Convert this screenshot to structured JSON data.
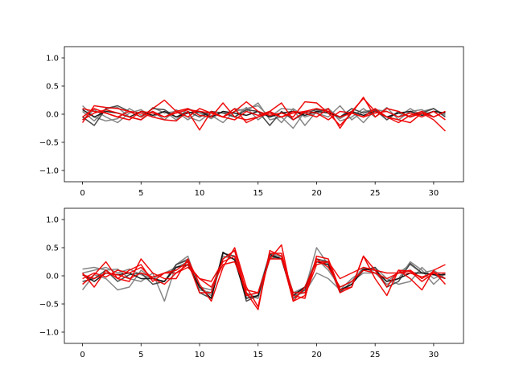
{
  "chart_data": [
    {
      "type": "line",
      "title": "",
      "xlabel": "",
      "ylabel": "",
      "xlim": [
        -1.55,
        32.55
      ],
      "ylim": [
        -1.2,
        1.2
      ],
      "xticks": [
        "0",
        "5",
        "10",
        "15",
        "20",
        "25",
        "30"
      ],
      "yticks": [
        "−1.0",
        "−0.5",
        "0.0",
        "0.5",
        "1.0"
      ],
      "grid": false,
      "legend": "none",
      "x": [
        0,
        1,
        2,
        3,
        4,
        5,
        6,
        7,
        8,
        9,
        10,
        11,
        12,
        13,
        14,
        15,
        16,
        17,
        18,
        19,
        20,
        21,
        22,
        23,
        24,
        25,
        26,
        27,
        28,
        29,
        30,
        31
      ],
      "series": [
        {
          "color": "#808080",
          "values": [
            0.15,
            -0.05,
            -0.12,
            -0.08,
            0.1,
            -0.02,
            0.05,
            -0.1,
            0.08,
            -0.05,
            -0.12,
            0.03,
            -0.05,
            0.1,
            0.05,
            0.2,
            -0.1,
            -0.05,
            -0.25,
            0.05,
            0.02,
            0.1,
            -0.08,
            0.05,
            -0.15,
            0.08,
            0.05,
            -0.05,
            0.1,
            -0.02,
            0.05,
            0.02
          ]
        },
        {
          "color": "#808080",
          "values": [
            0.05,
            -0.12,
            0.1,
            0.12,
            -0.05,
            -0.1,
            0.12,
            0.02,
            0.05,
            -0.1,
            0.05,
            -0.02,
            -0.15,
            0.05,
            0.1,
            0.15,
            -0.05,
            0.1,
            0.08,
            -0.2,
            0.05,
            0.1,
            -0.12,
            -0.05,
            0.1,
            -0.05,
            0.12,
            -0.1,
            0.05,
            0.08,
            -0.05,
            0.05
          ]
        },
        {
          "color": "#808080",
          "values": [
            -0.1,
            0.08,
            -0.05,
            -0.15,
            0.02,
            0.08,
            -0.05,
            0.05,
            -0.1,
            0.1,
            0.02,
            -0.08,
            0.05,
            -0.05,
            0.12,
            -0.1,
            0.05,
            -0.15,
            0.1,
            -0.05,
            0.02,
            -0.05,
            0.15,
            -0.1,
            0.05,
            0.08,
            -0.05,
            0.02,
            -0.05,
            0.05,
            0.1,
            -0.02
          ]
        },
        {
          "color": "#404040",
          "values": [
            -0.05,
            -0.2,
            0.1,
            0.15,
            0.05,
            -0.05,
            0.1,
            0.08,
            -0.05,
            0.05,
            -0.05,
            0.05,
            0.02,
            -0.05,
            0.08,
            0.05,
            -0.2,
            0.05,
            -0.1,
            0.02,
            0.08,
            0.05,
            -0.05,
            0.1,
            0.02,
            0.08,
            -0.1,
            0.05,
            -0.05,
            0.02,
            0.1,
            -0.05
          ]
        },
        {
          "color": "#101010",
          "values": [
            0.08,
            -0.05,
            0.05,
            0.02,
            -0.05,
            0.05,
            -0.02,
            0.05,
            -0.05,
            0.02,
            0.05,
            -0.05,
            0.05,
            0.02,
            -0.02,
            0.05,
            -0.05,
            0.02,
            0.05,
            -0.02,
            0.05,
            0.02,
            -0.05,
            0.05,
            -0.02,
            0.05,
            -0.05,
            0.02,
            0.05,
            -0.02,
            0.05,
            0.02
          ]
        },
        {
          "color": "#ee0000",
          "values": [
            -0.15,
            0.15,
            0.12,
            0.1,
            0.05,
            -0.05,
            0.1,
            0.25,
            0.05,
            0.1,
            -0.02,
            -0.05,
            0.2,
            -0.05,
            -0.1,
            -0.05,
            0.05,
            0.2,
            -0.1,
            0.05,
            0.1,
            0.05,
            -0.05,
            0.02,
            0.3,
            -0.05,
            0.1,
            0.05,
            -0.05,
            0.02,
            -0.05,
            0.05
          ]
        },
        {
          "color": "#ee0000",
          "values": [
            -0.05,
            0.1,
            0.02,
            -0.05,
            -0.1,
            0.05,
            0.02,
            -0.05,
            0.05,
            -0.05,
            0.1,
            0.02,
            -0.05,
            0.05,
            0.22,
            0.05,
            -0.02,
            0.02,
            -0.05,
            0.22,
            0.2,
            0.02,
            -0.2,
            0.02,
            -0.05,
            0.1,
            -0.05,
            -0.15,
            -0.02,
            0.05,
            -0.05,
            0.05
          ]
        },
        {
          "color": "#ee0000",
          "values": [
            0.1,
            0.05,
            0.02,
            -0.05,
            0.05,
            0.02,
            -0.05,
            -0.1,
            -0.12,
            0.05,
            -0.28,
            0.05,
            -0.05,
            0.1,
            -0.15,
            -0.05,
            0.02,
            -0.05,
            0.05,
            0.02,
            -0.05,
            0.1,
            -0.25,
            0.05,
            0.28,
            0.05,
            -0.05,
            -0.1,
            -0.15,
            0.02,
            -0.1,
            -0.3
          ]
        },
        {
          "color": "#ee0000",
          "values": [
            -0.1,
            0.02,
            0.08,
            0.02,
            -0.05,
            -0.1,
            0.05,
            -0.05,
            0.02,
            0.08,
            0.05,
            0.02,
            -0.05,
            -0.1,
            0.05,
            -0.02,
            0.05,
            -0.05,
            0.02,
            0.05,
            0.02,
            -0.1,
            0.05,
            0.02,
            -0.05,
            0.02,
            0.05,
            -0.05,
            0.02,
            -0.05,
            0.05,
            -0.1
          ]
        }
      ]
    },
    {
      "type": "line",
      "title": "",
      "xlabel": "",
      "ylabel": "",
      "xlim": [
        -1.55,
        32.55
      ],
      "ylim": [
        -1.2,
        1.2
      ],
      "xticks": [
        "0",
        "5",
        "10",
        "15",
        "20",
        "25",
        "30"
      ],
      "yticks": [
        "−1.0",
        "−0.5",
        "0.0",
        "0.5",
        "1.0"
      ],
      "grid": false,
      "legend": "none",
      "x": [
        0,
        1,
        2,
        3,
        4,
        5,
        6,
        7,
        8,
        9,
        10,
        11,
        12,
        13,
        14,
        15,
        16,
        17,
        18,
        19,
        20,
        21,
        22,
        23,
        24,
        25,
        26,
        27,
        28,
        29,
        30,
        31
      ],
      "series": [
        {
          "color": "#808080",
          "values": [
            0.12,
            0.15,
            0.1,
            0.12,
            -0.05,
            -0.1,
            0.05,
            -0.45,
            0.2,
            0.3,
            -0.2,
            -0.25,
            0.35,
            0.3,
            -0.3,
            -0.4,
            0.3,
            0.35,
            -0.3,
            -0.25,
            0.5,
            0.2,
            -0.3,
            -0.1,
            0.15,
            0.05,
            -0.15,
            -0.05,
            0.25,
            0.1,
            -0.15,
            0.05
          ]
        },
        {
          "color": "#808080",
          "values": [
            -0.25,
            0.02,
            -0.05,
            -0.25,
            -0.2,
            0.1,
            -0.05,
            -0.1,
            0.2,
            0.35,
            -0.25,
            -0.3,
            0.35,
            0.3,
            -0.35,
            -0.3,
            0.4,
            0.3,
            -0.35,
            -0.3,
            0.05,
            -0.05,
            -0.25,
            -0.05,
            0.1,
            0.15,
            -0.05,
            -0.15,
            -0.1,
            0.15,
            -0.05,
            0.05
          ]
        },
        {
          "color": "#808080",
          "values": [
            0.05,
            0.1,
            0.15,
            0.05,
            0.12,
            0.02,
            -0.05,
            0.05,
            0.15,
            0.25,
            -0.2,
            -0.35,
            0.3,
            0.45,
            -0.35,
            -0.4,
            0.4,
            0.35,
            -0.3,
            -0.2,
            0.3,
            0.1,
            -0.2,
            -0.1,
            0.05,
            0.05,
            -0.1,
            0.05,
            0.2,
            0.05,
            0.1,
            -0.05
          ]
        },
        {
          "color": "#404040",
          "values": [
            -0.1,
            -0.05,
            0.1,
            -0.1,
            0.02,
            0.05,
            -0.15,
            -0.1,
            0.2,
            0.28,
            -0.3,
            -0.4,
            0.4,
            0.35,
            -0.45,
            -0.35,
            0.35,
            0.3,
            -0.4,
            -0.25,
            0.3,
            0.25,
            -0.28,
            -0.15,
            0.1,
            0.15,
            -0.2,
            -0.1,
            0.22,
            0.05,
            0.02,
            -0.05
          ]
        },
        {
          "color": "#101010",
          "values": [
            0.02,
            -0.1,
            0.05,
            0.02,
            0.05,
            -0.05,
            -0.05,
            -0.1,
            0.15,
            0.2,
            -0.2,
            -0.4,
            0.42,
            0.28,
            -0.4,
            -0.35,
            0.38,
            0.3,
            -0.35,
            -0.2,
            0.25,
            0.2,
            -0.25,
            -0.15,
            0.12,
            0.1,
            -0.1,
            -0.05,
            0.05,
            0.05,
            0.02,
            0.02
          ]
        },
        {
          "color": "#ee0000",
          "values": [
            -0.15,
            0.02,
            0.25,
            -0.05,
            -0.1,
            0.3,
            0.05,
            -0.05,
            -0.05,
            0.3,
            -0.15,
            -0.45,
            0.15,
            0.5,
            -0.2,
            -0.55,
            0.4,
            0.4,
            -0.35,
            -0.4,
            0.35,
            0.3,
            -0.25,
            -0.2,
            0.35,
            0.1,
            -0.2,
            0.1,
            0.08,
            -0.1,
            0.05,
            0.05
          ]
        },
        {
          "color": "#ee0000",
          "values": [
            0.05,
            -0.2,
            0.1,
            -0.05,
            0.1,
            0.2,
            -0.1,
            0.05,
            0.1,
            0.25,
            -0.3,
            -0.3,
            0.3,
            0.45,
            -0.3,
            -0.6,
            0.45,
            0.35,
            -0.45,
            -0.35,
            0.2,
            0.25,
            -0.3,
            -0.2,
            0.35,
            -0.05,
            -0.35,
            0.1,
            -0.05,
            -0.25,
            0.1,
            0.2
          ]
        },
        {
          "color": "#ee0000",
          "values": [
            -0.05,
            0.05,
            -0.02,
            0.1,
            0.05,
            0.15,
            -0.05,
            -0.15,
            0.05,
            0.2,
            -0.05,
            -0.1,
            0.25,
            0.35,
            -0.35,
            -0.3,
            0.3,
            0.55,
            -0.45,
            -0.2,
            0.25,
            0.25,
            -0.05,
            0.05,
            0.15,
            0.1,
            0.05,
            0.05,
            0.1,
            -0.05,
            0.08,
            -0.15
          ]
        },
        {
          "color": "#ee0000",
          "values": [
            0.02,
            -0.05,
            0.05,
            0.02,
            -0.05,
            0.05,
            -0.02,
            0.05,
            0.05,
            0.15,
            -0.05,
            -0.2,
            0.2,
            0.25,
            -0.25,
            -0.3,
            0.3,
            0.3,
            -0.3,
            -0.3,
            0.3,
            0.15,
            -0.2,
            -0.1,
            0.1,
            0.05,
            -0.05,
            0.05,
            0.05,
            -0.02,
            0.05,
            -0.05
          ]
        }
      ]
    }
  ]
}
